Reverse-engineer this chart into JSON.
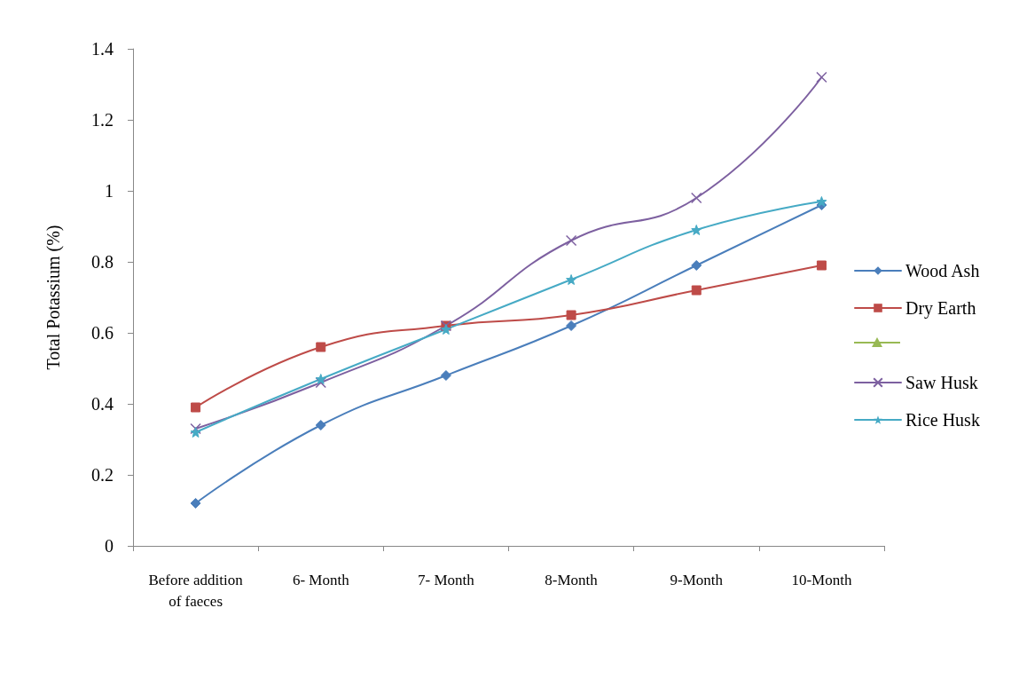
{
  "chart_data": {
    "type": "line",
    "ylabel": "Total Potassium (%)",
    "categories": [
      "Before addition\nof faeces",
      "6- Month",
      "7- Month",
      "8-Month",
      "9-Month",
      "10-Month"
    ],
    "ylim": [
      0,
      1.4
    ],
    "yticks": [
      0,
      0.2,
      0.4,
      0.6,
      0.8,
      1,
      1.2,
      1.4
    ],
    "grid": false,
    "legend": "right",
    "series": [
      {
        "name": "Wood Ash",
        "color": "#4a7ebb",
        "marker": "diamond",
        "values": [
          0.12,
          0.34,
          0.48,
          0.62,
          0.79,
          0.96
        ]
      },
      {
        "name": "Dry Earth",
        "color": "#be4b48",
        "marker": "square",
        "values": [
          0.39,
          0.56,
          0.62,
          0.65,
          0.72,
          0.79
        ]
      },
      {
        "color": "#98b954",
        "marker": "triangle",
        "values": [
          null,
          null,
          null,
          null,
          null,
          null
        ]
      },
      {
        "name": "Saw Husk",
        "color": "#7d60a0",
        "marker": "cross",
        "values": [
          0.33,
          0.46,
          0.62,
          0.86,
          0.98,
          1.32
        ]
      },
      {
        "name": "Rice Husk",
        "color": "#46aac5",
        "marker": "star",
        "values": [
          0.32,
          0.47,
          0.61,
          0.75,
          0.89,
          0.97
        ]
      }
    ]
  }
}
